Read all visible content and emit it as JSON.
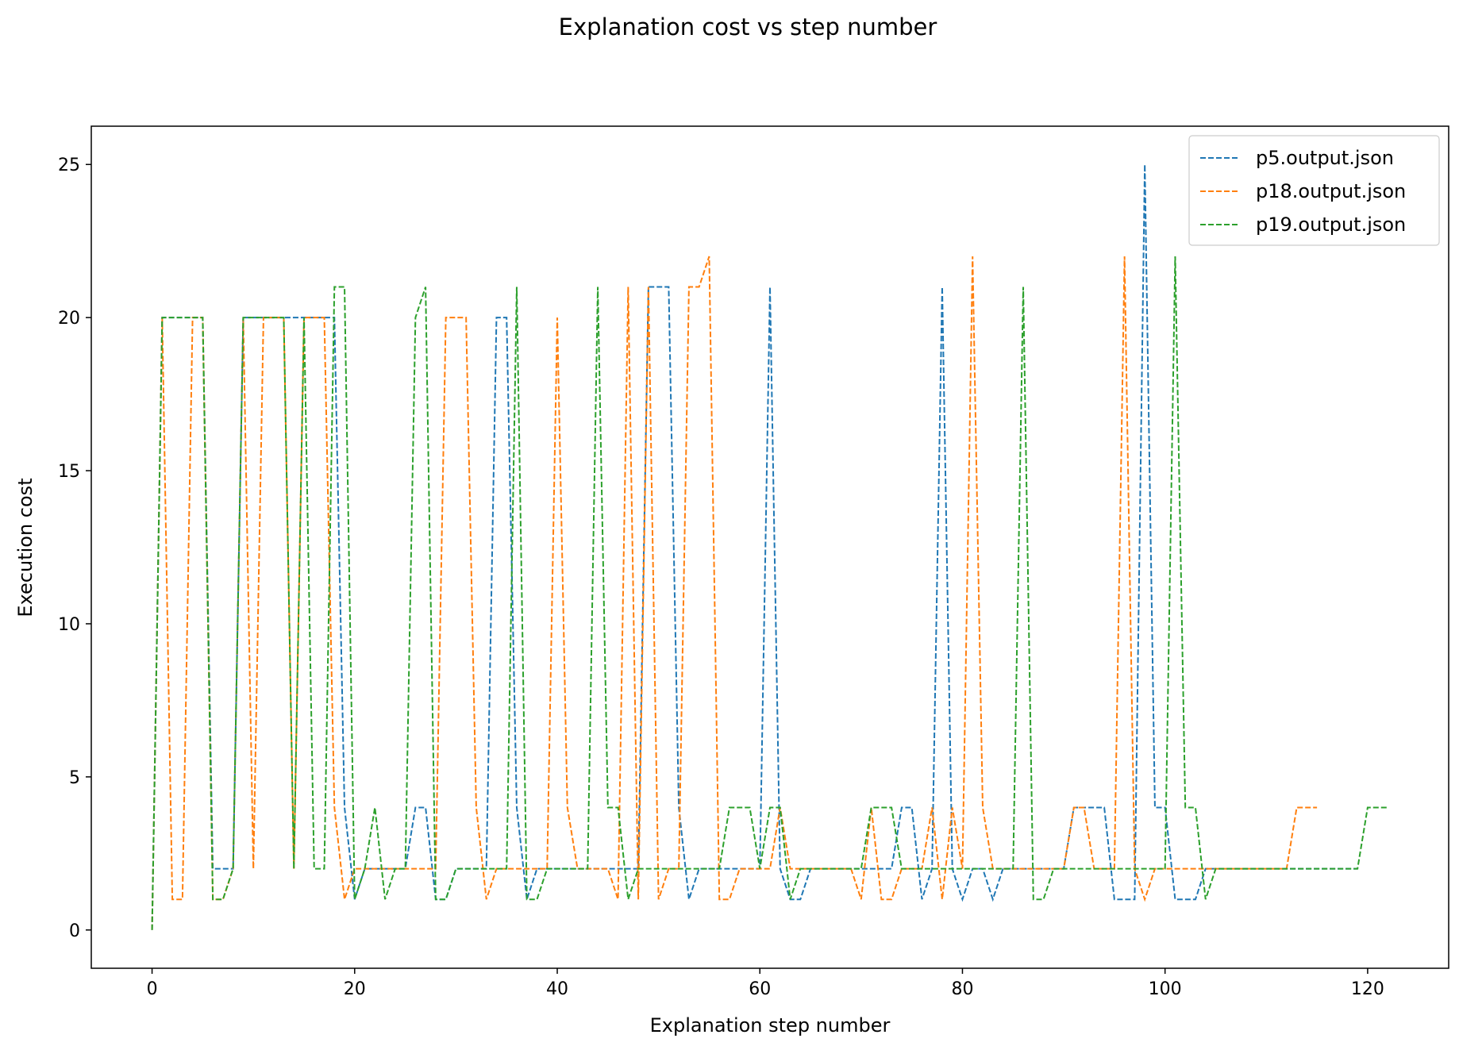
{
  "chart_data": {
    "type": "line",
    "title": "Explanation cost vs step number",
    "xlabel": "Explanation step number",
    "ylabel": "Execution cost",
    "xlim": [
      -6,
      128
    ],
    "ylim": [
      -1.25,
      26.25
    ],
    "xticks": [
      0,
      20,
      40,
      60,
      80,
      100,
      120
    ],
    "yticks": [
      0,
      5,
      10,
      15,
      20,
      25
    ],
    "grid": false,
    "legend_position": "top-right",
    "line_style": "dashed",
    "series": [
      {
        "name": "p5.output.json",
        "color": "#1f77b4",
        "values": [
          0,
          20,
          20,
          20,
          20,
          20,
          2,
          2,
          2,
          20,
          20,
          20,
          20,
          20,
          20,
          20,
          20,
          20,
          20,
          4,
          1,
          2,
          2,
          2,
          2,
          2,
          4,
          4,
          1,
          1,
          2,
          2,
          2,
          2,
          20,
          20,
          4,
          1,
          2,
          2,
          2,
          2,
          2,
          2,
          2,
          2,
          2,
          2,
          2,
          21,
          21,
          21,
          4,
          1,
          2,
          2,
          2,
          2,
          2,
          2,
          2,
          21,
          2,
          1,
          1,
          2,
          2,
          2,
          2,
          2,
          2,
          2,
          2,
          2,
          4,
          4,
          1,
          2,
          21,
          2,
          1,
          2,
          2,
          1,
          2,
          2,
          2,
          2,
          2,
          2,
          2,
          4,
          4,
          4,
          4,
          1,
          1,
          1,
          25,
          4,
          4,
          1,
          1,
          1,
          2,
          2,
          2,
          2,
          2,
          2,
          2,
          2,
          2,
          2,
          2,
          2,
          2,
          2,
          2,
          2
        ]
      },
      {
        "name": "p18.output.json",
        "color": "#ff7f0e",
        "values": [
          0,
          20,
          1,
          1,
          20,
          20,
          1,
          1,
          2,
          20,
          2,
          20,
          20,
          20,
          2,
          20,
          20,
          20,
          4,
          1,
          2,
          2,
          2,
          2,
          2,
          2,
          2,
          2,
          2,
          20,
          20,
          20,
          4,
          1,
          2,
          2,
          2,
          2,
          2,
          2,
          20,
          4,
          2,
          2,
          2,
          2,
          1,
          21,
          1,
          21,
          1,
          2,
          2,
          21,
          21,
          22,
          1,
          1,
          2,
          2,
          2,
          2,
          4,
          2,
          2,
          2,
          2,
          2,
          2,
          2,
          1,
          4,
          1,
          1,
          2,
          2,
          2,
          4,
          1,
          4,
          2,
          22,
          4,
          2,
          2,
          2,
          2,
          2,
          2,
          2,
          2,
          4,
          4,
          2,
          2,
          2,
          22,
          2,
          1,
          2,
          2,
          2,
          2,
          2,
          2,
          2,
          2,
          2,
          2,
          2,
          2,
          2,
          2,
          4,
          4,
          4
        ]
      },
      {
        "name": "p19.output.json",
        "color": "#2ca02c",
        "values": [
          0,
          20,
          20,
          20,
          20,
          20,
          1,
          1,
          2,
          20,
          20,
          20,
          20,
          20,
          2,
          20,
          2,
          2,
          21,
          21,
          1,
          2,
          4,
          1,
          2,
          2,
          20,
          21,
          1,
          1,
          2,
          2,
          2,
          2,
          2,
          2,
          21,
          1,
          1,
          2,
          2,
          2,
          2,
          2,
          21,
          4,
          4,
          1,
          2,
          2,
          2,
          2,
          2,
          2,
          2,
          2,
          2,
          4,
          4,
          4,
          2,
          4,
          4,
          1,
          2,
          2,
          2,
          2,
          2,
          2,
          2,
          4,
          4,
          4,
          2,
          2,
          2,
          2,
          2,
          2,
          2,
          2,
          2,
          2,
          2,
          2,
          21,
          1,
          1,
          2,
          2,
          2,
          2,
          2,
          2,
          2,
          2,
          2,
          2,
          2,
          2,
          22,
          4,
          4,
          1,
          2,
          2,
          2,
          2,
          2,
          2,
          2,
          2,
          2,
          2,
          2,
          2,
          2,
          2,
          2,
          4,
          4,
          4
        ]
      }
    ]
  }
}
